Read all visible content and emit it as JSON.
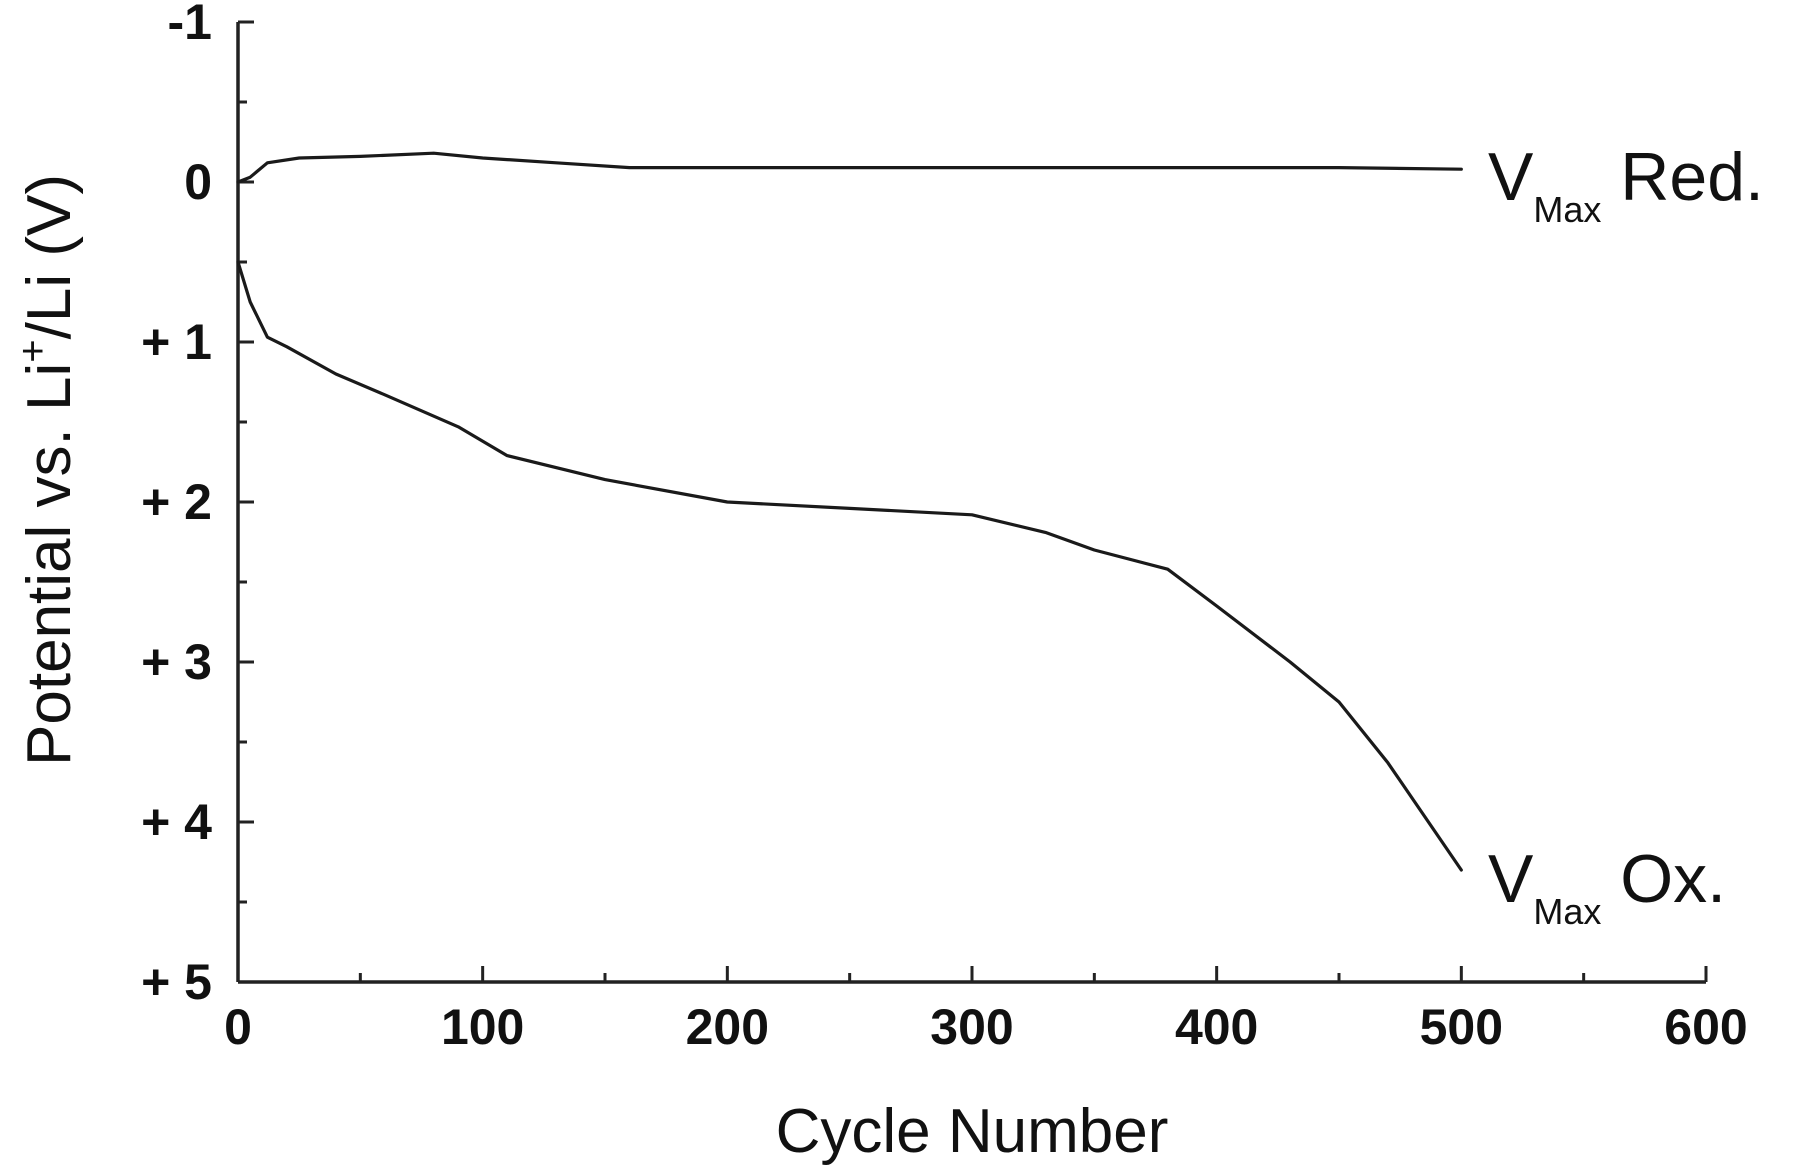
{
  "chart_data": {
    "type": "line",
    "xlabel": "Cycle Number",
    "ylabel": {
      "prefix": "Potential vs. Li",
      "superscript": "+",
      "suffix": "/Li (V)"
    },
    "xlim": [
      0,
      600
    ],
    "ylim": [
      -1,
      5
    ],
    "y_inverted": true,
    "grid": false,
    "x_ticks": [
      0,
      100,
      200,
      300,
      400,
      500,
      600
    ],
    "x_tick_labels": [
      "0",
      "100",
      "200",
      "300",
      "400",
      "500",
      "600"
    ],
    "y_ticks": [
      -1,
      0,
      1,
      2,
      3,
      4,
      5
    ],
    "y_tick_labels": [
      "-1",
      "0",
      "+ 1",
      "+ 2",
      "+ 3",
      "+ 4",
      "+ 5"
    ],
    "series": [
      {
        "name": {
          "main": "V",
          "sub": "Max",
          "suffix": " Red."
        },
        "color": "#1a1a1a",
        "x": [
          0,
          5,
          12,
          25,
          50,
          80,
          100,
          130,
          160,
          200,
          250,
          300,
          350,
          400,
          450,
          500
        ],
        "y": [
          0.0,
          -0.03,
          -0.12,
          -0.15,
          -0.16,
          -0.18,
          -0.15,
          -0.12,
          -0.09,
          -0.09,
          -0.09,
          -0.09,
          -0.09,
          -0.09,
          -0.09,
          -0.08
        ]
      },
      {
        "name": {
          "main": "V",
          "sub": "Max",
          "suffix": " Ox."
        },
        "color": "#1a1a1a",
        "x": [
          0,
          5,
          12,
          20,
          40,
          60,
          90,
          110,
          150,
          200,
          250,
          300,
          330,
          350,
          380,
          400,
          430,
          450,
          470,
          500
        ],
        "y": [
          0.5,
          0.75,
          0.97,
          1.03,
          1.2,
          1.33,
          1.53,
          1.71,
          1.86,
          2.0,
          2.04,
          2.08,
          2.19,
          2.3,
          2.42,
          2.65,
          3.0,
          3.25,
          3.63,
          4.3
        ]
      }
    ]
  }
}
